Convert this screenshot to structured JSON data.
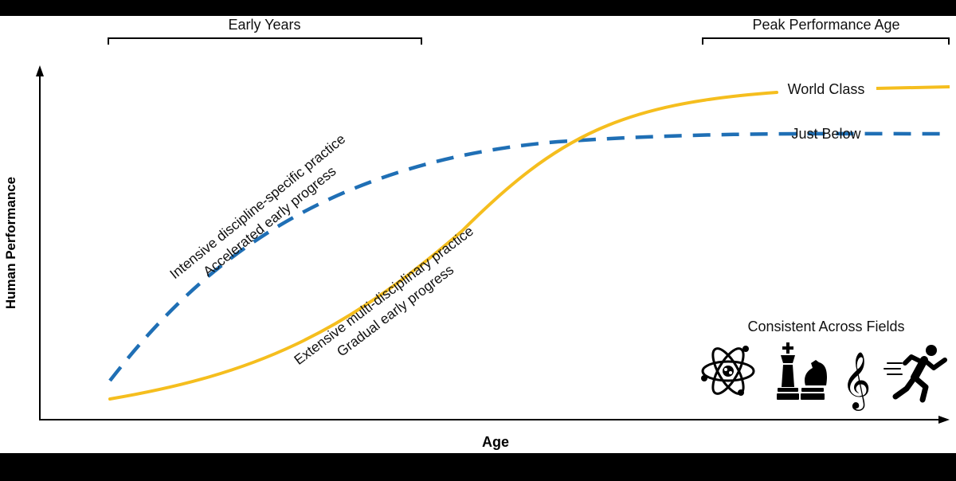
{
  "figure": {
    "x_axis_label": "Age",
    "y_axis_label": "Human Performance",
    "brackets": {
      "early_years": "Early Years",
      "peak_performance": "Peak Performance Age"
    },
    "curves": {
      "world_class": {
        "label": "World Class",
        "style": "solid",
        "color": "#F5BE1E",
        "annotation_line1": "Extensive multi-disciplinary practice",
        "annotation_line2": "Gradual early progress"
      },
      "just_below": {
        "label": "Just Below",
        "style": "dashed",
        "color": "#1F6FB5",
        "annotation_line1": "Intensive discipline-specific practice",
        "annotation_line2": "Accelerated early progress"
      }
    },
    "fields_title": "Consistent Across Fields",
    "field_icons": [
      "atom-icon",
      "chess-pieces-icon",
      "treble-clef-icon",
      "runner-icon"
    ]
  }
}
